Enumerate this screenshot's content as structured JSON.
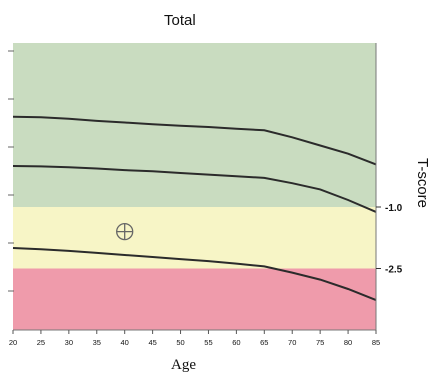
{
  "chart_data": {
    "type": "line",
    "title": "Total",
    "xlabel": "Age",
    "ylabel": "T-score",
    "x": [
      20,
      25,
      30,
      35,
      40,
      45,
      50,
      55,
      60,
      65,
      70,
      75,
      80,
      85
    ],
    "xticks": [
      "20",
      "25",
      "30",
      "35",
      "40",
      "45",
      "50",
      "55",
      "60",
      "65",
      "70",
      "75",
      "80",
      "85"
    ],
    "xlim": [
      20,
      85
    ],
    "ylim": [
      -4.0,
      3.0
    ],
    "y_annotations": [
      {
        "value": -1.0,
        "label": "-1.0"
      },
      {
        "value": -2.5,
        "label": "-2.5"
      }
    ],
    "bands": [
      {
        "from": -1.0,
        "to": 3.0,
        "color": "#c9dcc0"
      },
      {
        "from": -2.5,
        "to": -1.0,
        "color": "#f7f5c6"
      },
      {
        "from": -4.0,
        "to": -2.5,
        "color": "#ef9bab"
      }
    ],
    "series": [
      {
        "values": [
          1.2,
          1.19,
          1.15,
          1.1,
          1.06,
          1.02,
          0.98,
          0.95,
          0.91,
          0.87,
          0.7,
          0.5,
          0.3,
          0.04
        ]
      },
      {
        "values": [
          0.0,
          -0.01,
          -0.03,
          -0.06,
          -0.1,
          -0.13,
          -0.17,
          -0.21,
          -0.25,
          -0.29,
          -0.42,
          -0.57,
          -0.83,
          -1.12
        ]
      },
      {
        "values": [
          -2.0,
          -2.03,
          -2.07,
          -2.12,
          -2.17,
          -2.22,
          -2.27,
          -2.32,
          -2.38,
          -2.45,
          -2.6,
          -2.77,
          -3.0,
          -3.27
        ]
      }
    ],
    "marker": {
      "x": 40,
      "y": -1.6,
      "symbol": "circled-cross"
    },
    "grid": false,
    "line_color": "#2b2b2b"
  }
}
